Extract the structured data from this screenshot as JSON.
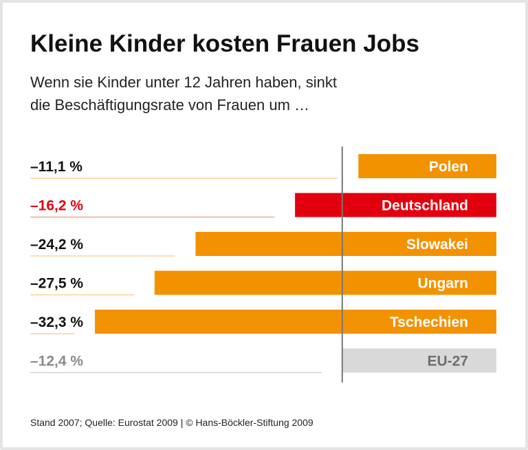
{
  "title": "Kleine Kinder kosten Frauen Jobs",
  "subtitle_lines": [
    "Wenn sie Kinder unter 12 Jahren haben, sinkt",
    "die Beschäftigungsrate von Frauen um …"
  ],
  "footer": "Stand 2007; Quelle: Eurostat 2009 | © Hans-Böckler-Stiftung 2009",
  "colors": {
    "default": "#f39200",
    "highlight": "#e2000f",
    "reference": "#d9d9d9",
    "reference_text": "#6f6f6f",
    "reference_line": "#777777"
  },
  "chart_data": {
    "type": "bar",
    "orientation": "horizontal",
    "title": "Kleine Kinder kosten Frauen Jobs",
    "unit": "%",
    "categories": [
      "Polen",
      "Deutschland",
      "Slowakei",
      "Ungarn",
      "Tschechien",
      "EU-27"
    ],
    "values": [
      -11.1,
      -16.2,
      -24.2,
      -27.5,
      -32.3,
      -12.4
    ],
    "value_labels": [
      "–11,1 %",
      "–16,2 %",
      "–24,2 %",
      "–27,5 %",
      "–32,3 %",
      "–12,4 %"
    ],
    "highlight": "Deutschland",
    "reference": "EU-27",
    "grid": false
  }
}
